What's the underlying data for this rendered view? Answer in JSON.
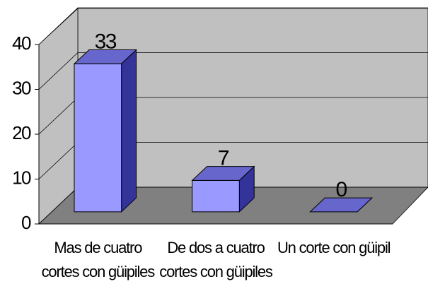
{
  "chart_data": {
    "type": "bar3d",
    "categories": [
      "Mas de cuatro cortes con güipiles",
      "De dos a cuatro cortes con güipiles",
      "Un corte con güipil"
    ],
    "values": [
      33,
      7,
      0
    ],
    "color": "#9999ff",
    "ylim": [
      0,
      40
    ],
    "yticks": [
      0,
      10,
      20,
      30,
      40
    ],
    "grid": true
  }
}
